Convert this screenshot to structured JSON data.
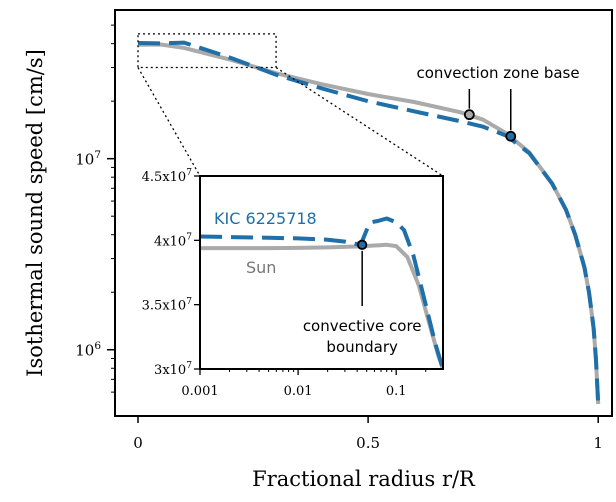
{
  "colors": {
    "sun": "#aaaaaa",
    "kic": "#1f6fa8",
    "axis": "#000000",
    "marker_edge": "#000000"
  },
  "chart_data": [
    {
      "type": "line",
      "xlabel": "Fractional radius r/R",
      "ylabel": "Isothermal sound speed [cm/s]",
      "yscale": "log",
      "xlim": [
        -0.05,
        1.03
      ],
      "ylim": [
        450000,
        60000000
      ],
      "xticks": [
        0,
        0.5,
        1
      ],
      "xtick_labels": [
        "0",
        "0.5",
        "1"
      ],
      "yticks": [
        1000000,
        10000000
      ],
      "ytick_labels": [
        {
          "base": "10",
          "exp": "6"
        },
        {
          "base": "10",
          "exp": "7"
        }
      ],
      "series": [
        {
          "name": "Sun",
          "style": "solid",
          "x": [
            0,
            0.05,
            0.1,
            0.2,
            0.3,
            0.4,
            0.5,
            0.6,
            0.7,
            0.75,
            0.8,
            0.85,
            0.9,
            0.93,
            0.95,
            0.97,
            0.98,
            0.99,
            0.995,
            1.0
          ],
          "y": [
            39500000,
            39600000,
            38000000,
            33000000,
            28000000,
            24500000,
            21800000,
            19800000,
            17500000,
            16000000,
            13600000,
            10800000,
            7400000,
            5400000,
            4000000,
            2700000,
            2000000,
            1300000,
            900000,
            520000
          ]
        },
        {
          "name": "KIC 6225718",
          "style": "dashed",
          "x": [
            0,
            0.05,
            0.1,
            0.2,
            0.3,
            0.4,
            0.5,
            0.6,
            0.7,
            0.75,
            0.8,
            0.85,
            0.9,
            0.93,
            0.95,
            0.97,
            0.98,
            0.99,
            0.995,
            1.0
          ],
          "y": [
            40300000,
            40100000,
            40500000,
            33800000,
            27500000,
            23300000,
            20000000,
            17700000,
            15700000,
            14700000,
            13200000,
            10700000,
            7400000,
            5400000,
            4000000,
            2700000,
            2000000,
            1300000,
            900000,
            520000
          ]
        }
      ],
      "markers": [
        {
          "series": "Sun",
          "x": 0.72,
          "y": 17000000
        },
        {
          "series": "KIC 6225718",
          "x": 0.81,
          "y": 13100000
        }
      ],
      "annotations": [
        {
          "text": "convection zone base",
          "points_to": [
            0.72,
            0.81
          ]
        }
      ],
      "zoom_box": {
        "x": [
          0.001,
          0.3
        ],
        "y": [
          30000000,
          45000000
        ]
      }
    },
    {
      "type": "line",
      "role": "inset",
      "xscale": "log",
      "xlim": [
        0.001,
        0.3
      ],
      "ylim": [
        30000000,
        45000000
      ],
      "xticks": [
        0.001,
        0.01,
        0.1
      ],
      "xtick_labels": [
        "0.001",
        "0.01",
        "0.1"
      ],
      "yticks": [
        30000000,
        35000000,
        40000000,
        45000000
      ],
      "ytick_labels": [
        {
          "base": "3x10",
          "exp": "7"
        },
        {
          "base": "3.5x10",
          "exp": "7"
        },
        {
          "base": "4x10",
          "exp": "7"
        },
        {
          "base": "4.5x10",
          "exp": "7"
        }
      ],
      "series": [
        {
          "name": "Sun",
          "style": "solid",
          "x": [
            0.001,
            0.002,
            0.005,
            0.01,
            0.02,
            0.04,
            0.06,
            0.08,
            0.1,
            0.13,
            0.17,
            0.22,
            0.27,
            0.3
          ],
          "y": [
            39400000,
            39400000,
            39400000,
            39410000,
            39450000,
            39520000,
            39600000,
            39650000,
            39550000,
            38700000,
            36500000,
            33400000,
            31000000,
            30000000
          ]
        },
        {
          "name": "KIC 6225718",
          "style": "dashed",
          "x": [
            0.001,
            0.005,
            0.01,
            0.02,
            0.03,
            0.04,
            0.045,
            0.05,
            0.055,
            0.065,
            0.08,
            0.1,
            0.12,
            0.15,
            0.2,
            0.25,
            0.3
          ],
          "y": [
            40300000,
            40200000,
            40150000,
            40050000,
            39900000,
            39700000,
            39950000,
            40800000,
            41400000,
            41500000,
            41700000,
            41400000,
            40800000,
            38800000,
            35000000,
            32000000,
            30000000
          ]
        }
      ],
      "markers": [
        {
          "series": "KIC 6225718",
          "x": 0.045,
          "y": 39650000
        }
      ],
      "legend_labels": [
        {
          "series": "KIC 6225718",
          "text": "KIC 6225718"
        },
        {
          "series": "Sun",
          "text": "Sun"
        }
      ],
      "annotations": [
        {
          "text_lines": [
            "convective core",
            "boundary"
          ],
          "points_to": 0.045
        }
      ]
    }
  ]
}
